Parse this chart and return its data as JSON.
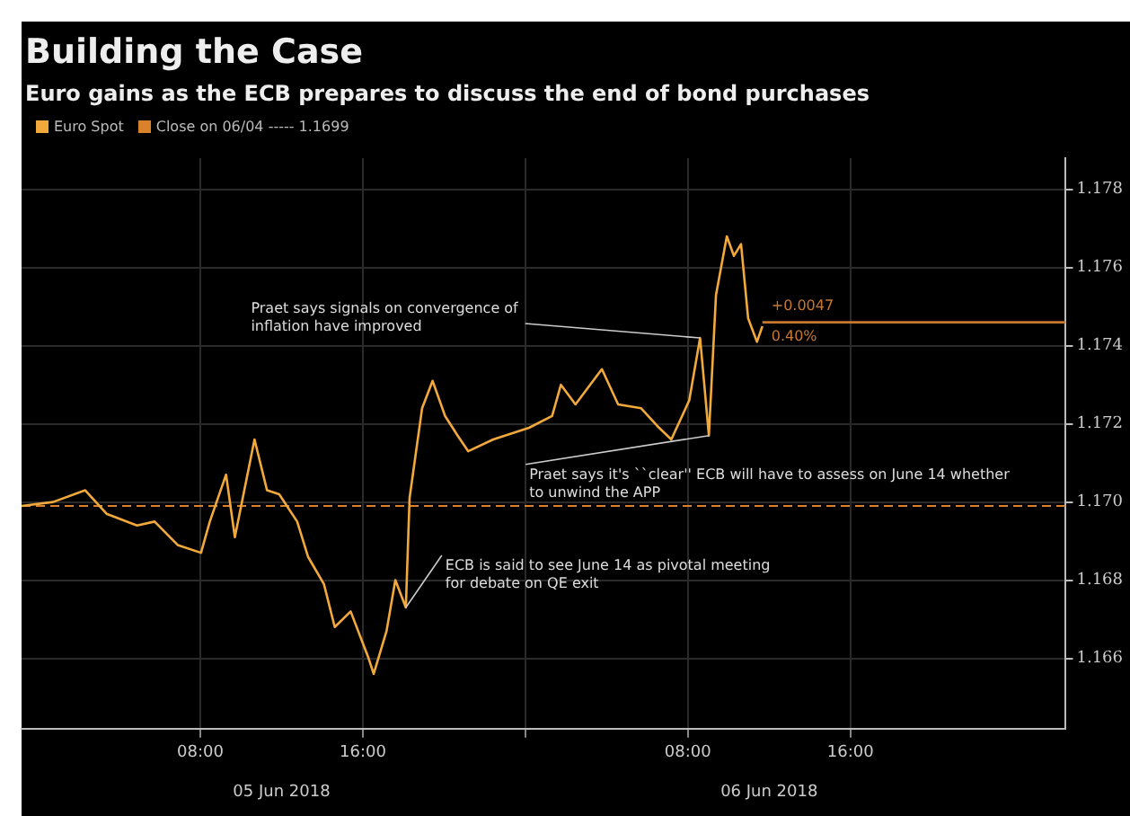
{
  "chart_data": {
    "type": "line",
    "title": "Building the Case",
    "subtitle": "Euro gains as the ECB prepares to discuss the end of bond purchases",
    "x": [
      "2018-06-04T23:12",
      "2018-06-05T00:45",
      "2018-06-05T02:20",
      "2018-06-05T03:23",
      "2018-06-05T04:53",
      "2018-06-05T05:45",
      "2018-06-05T06:53",
      "2018-06-05T08:02",
      "2018-06-05T08:28",
      "2018-06-05T09:16",
      "2018-06-05T09:42",
      "2018-06-05T10:40",
      "2018-06-05T11:17",
      "2018-06-05T11:53",
      "2018-06-05T12:46",
      "2018-06-05T13:18",
      "2018-06-05T14:05",
      "2018-06-05T14:37",
      "2018-06-05T15:24",
      "2018-06-05T16:17",
      "2018-06-05T16:32",
      "2018-06-05T17:10",
      "2018-06-05T17:36",
      "2018-06-05T18:07",
      "2018-06-05T18:18",
      "2018-06-05T18:55",
      "2018-06-05T19:26",
      "2018-06-05T20:03",
      "2018-06-05T20:40",
      "2018-06-05T21:11",
      "2018-06-05T22:25",
      "2018-06-06T00:11",
      "2018-06-06T01:19",
      "2018-06-06T01:45",
      "2018-06-06T02:28",
      "2018-06-06T03:46",
      "2018-06-06T04:34",
      "2018-06-06T05:42",
      "2018-06-06T06:35",
      "2018-06-06T07:11",
      "2018-06-06T08:04",
      "2018-06-06T08:36",
      "2018-06-06T09:02",
      "2018-06-06T09:23",
      "2018-06-06T09:55",
      "2018-06-06T10:16",
      "2018-06-06T10:37",
      "2018-06-06T10:58",
      "2018-06-06T11:24",
      "2018-06-06T11:40"
    ],
    "series": [
      {
        "name": "Euro Spot",
        "color": "#f2a93b",
        "values": [
          1.1699,
          1.17,
          1.1703,
          1.1697,
          1.1694,
          1.1695,
          1.1689,
          1.1687,
          1.1695,
          1.1707,
          1.1691,
          1.1716,
          1.1703,
          1.1702,
          1.1695,
          1.1686,
          1.1679,
          1.1668,
          1.1672,
          1.166,
          1.1656,
          1.1667,
          1.168,
          1.1673,
          1.1701,
          1.1724,
          1.1731,
          1.1722,
          1.1717,
          1.1713,
          1.1716,
          1.1719,
          1.1722,
          1.173,
          1.1725,
          1.1734,
          1.1725,
          1.1724,
          1.1719,
          1.1716,
          1.1726,
          1.1742,
          1.1717,
          1.1753,
          1.1768,
          1.1763,
          1.1766,
          1.1747,
          1.1741,
          1.1745
        ]
      },
      {
        "color": "#c8782e",
        "x": [
          "2018-06-06T11:40",
          "2018-06-07T02:36"
        ],
        "values": [
          1.1746,
          1.1746
        ]
      }
    ],
    "xlim": [
      "2018-06-04T23:12",
      "2018-06-07T02:36"
    ],
    "xticks": [
      {
        "value": "2018-06-05T08:00",
        "label": "08:00"
      },
      {
        "value": "2018-06-05T16:00",
        "label": "16:00"
      },
      {
        "value": "2018-06-06T00:00",
        "label": null
      },
      {
        "value": "2018-06-06T08:00",
        "label": "08:00"
      },
      {
        "value": "2018-06-06T16:00",
        "label": "16:00"
      }
    ],
    "x2lim": [
      "2018-06-04T23:12",
      "2018-06-07T02:36"
    ],
    "x2ticks": [
      {
        "value": "2018-06-05T12:00",
        "label": "05 Jun 2018"
      },
      {
        "value": "2018-06-06T12:00",
        "label": "06 Jun 2018"
      }
    ],
    "ylim": [
      1.1642,
      1.1788
    ],
    "yticks": [
      1.166,
      1.168,
      {
        "value": 1.17,
        "label": "1.170"
      },
      1.172,
      1.174,
      1.176,
      1.178
    ],
    "ref_lines": [
      {
        "axis": "y",
        "value": 1.1699,
        "label": "Close on 06/04 ----- 1.1699",
        "color": "#d9822b",
        "line_style": "dashed"
      }
    ],
    "annotations": [
      {
        "text": "Praet says signals on convergence of inflation have improved",
        "x": "2018-06-06T08:36",
        "y": 1.1742
      },
      {
        "text": "Praet says it's ``clear'' ECB will have to assess on June 14 whether to unwind the APP",
        "x": "2018-06-06T09:02",
        "y": 1.1717
      },
      {
        "text": "ECB is said to see June 14 as pivotal meeting for debate on QE exit",
        "x": "2018-06-05T18:07",
        "y": 1.1673
      },
      {
        "text": "+0.0047",
        "x": "2018-06-06T11:40",
        "y": 1.1746
      },
      {
        "text": "0.40%",
        "x": "2018-06-06T11:40",
        "y": 1.1746
      }
    ],
    "grid": true,
    "legend": "top left",
    "marker": "none",
    "line_style": "solid"
  }
}
